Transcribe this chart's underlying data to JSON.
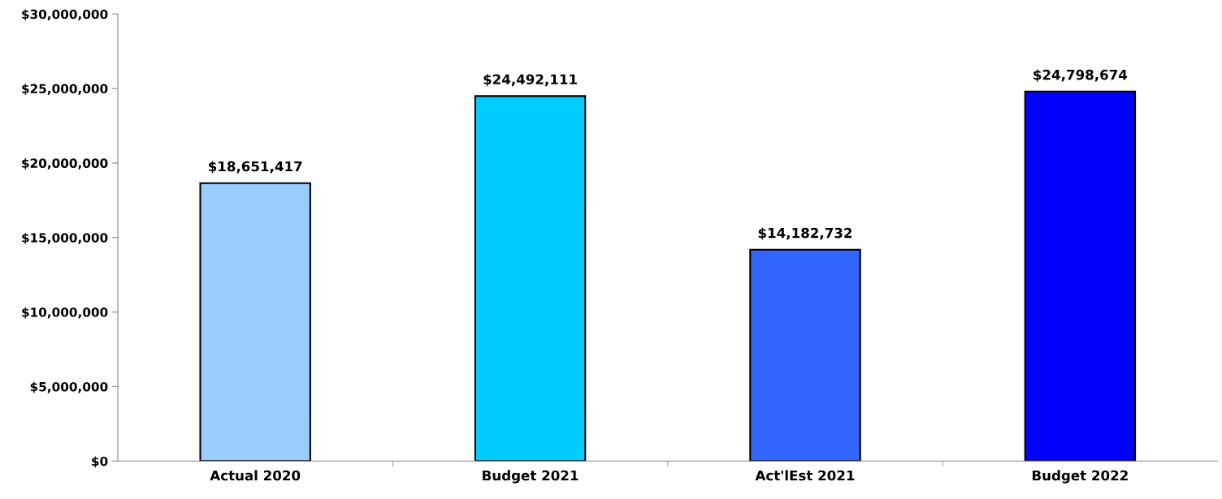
{
  "chart_data": {
    "type": "bar",
    "categories": [
      "Actual 2020",
      "Budget 2021",
      "Act'lEst 2021",
      "Budget 2022"
    ],
    "values": [
      18651417,
      24492111,
      14182732,
      24798674
    ],
    "colors": [
      "#99ccff",
      "#00ccff",
      "#3366ff",
      "#0000ff"
    ],
    "value_labels": [
      "$18,651,417",
      "$24,492,111",
      "$14,182,732",
      "$24,798,674"
    ],
    "ylim": [
      0,
      30000000
    ],
    "yticks": [
      {
        "value": 0,
        "label": "$0"
      },
      {
        "value": 5000000,
        "label": "$5,000,000"
      },
      {
        "value": 10000000,
        "label": "$10,000,000"
      },
      {
        "value": 15000000,
        "label": "$15,000,000"
      },
      {
        "value": 20000000,
        "label": "$20,000,000"
      },
      {
        "value": 25000000,
        "label": "$25,000,000"
      },
      {
        "value": 30000000,
        "label": "$30,000,000"
      }
    ],
    "grid": false,
    "legend": false
  }
}
